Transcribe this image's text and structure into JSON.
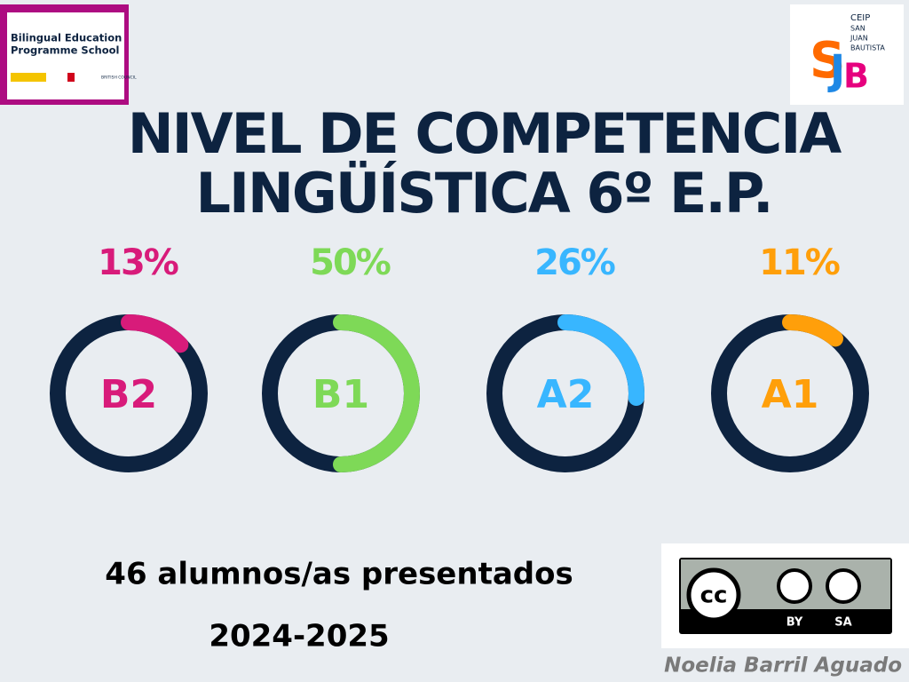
{
  "header": {
    "title_lines": [
      "NIVEL DE COMPETENCIA",
      "LINGÜÍSTICA 6º E.P."
    ],
    "logo_left": {
      "lines": [
        "Bilingual Education",
        "Programme School"
      ],
      "council": "BRITISH COUNCIL"
    },
    "logo_right": {
      "lines": [
        "CEIP",
        "SAN",
        "JUAN",
        "BAUTISTA"
      ]
    }
  },
  "chart_data": [
    {
      "type": "donut",
      "categories": [
        "B2"
      ],
      "values": [
        13
      ],
      "value_labels": [
        "13%"
      ],
      "color": "#d81b7a"
    },
    {
      "type": "donut",
      "categories": [
        "B1"
      ],
      "values": [
        50
      ],
      "value_labels": [
        "50%"
      ],
      "color": "#7ed957"
    },
    {
      "type": "donut",
      "categories": [
        "A2"
      ],
      "values": [
        26
      ],
      "value_labels": [
        "26%"
      ],
      "color": "#38b6ff"
    },
    {
      "type": "donut",
      "categories": [
        "A1"
      ],
      "values": [
        11
      ],
      "value_labels": [
        "11%"
      ],
      "color": "#ff9f0a"
    }
  ],
  "footer": {
    "students": "46 alumnos/as presentados",
    "year": "2024-2025",
    "license": {
      "cc": "cc",
      "by": "BY",
      "sa": "SA"
    },
    "author": "Noelia Barril Aguado"
  }
}
